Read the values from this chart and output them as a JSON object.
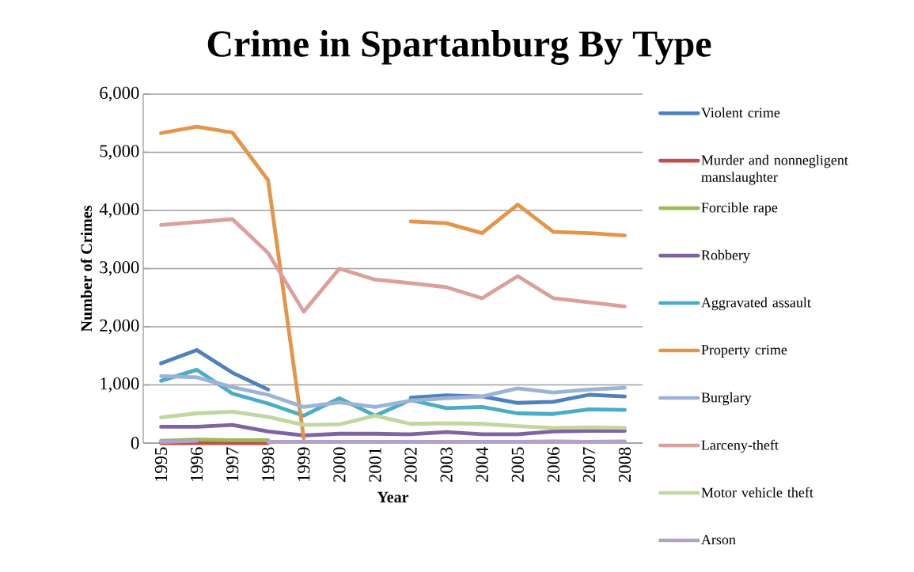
{
  "chart_data": {
    "type": "line",
    "title": "Crime in Spartanburg By Type",
    "xlabel": "Year",
    "ylabel": "Number of Crimes",
    "categories": [
      "1995",
      "1996",
      "1997",
      "1998",
      "1999",
      "2000",
      "2001",
      "2002",
      "2003",
      "2004",
      "2005",
      "2006",
      "2007",
      "2008"
    ],
    "ylim": [
      0,
      6000
    ],
    "yticks": [
      0,
      {
        "value": 1000,
        "label": "1,000"
      },
      {
        "value": 2000,
        "label": "2,000"
      },
      {
        "value": 3000,
        "label": "3,000"
      },
      {
        "value": 4000,
        "label": "4,000"
      },
      {
        "value": 5000,
        "label": "5,000"
      },
      {
        "value": 6000,
        "label": "6,000"
      }
    ],
    "grid": "y",
    "legend": "right",
    "marker": "none",
    "line_style": "solid",
    "series": [
      {
        "name": "Violent crime",
        "color": "#4f81bd",
        "values": [
          1370,
          1600,
          1210,
          920,
          null,
          null,
          null,
          780,
          820,
          800,
          690,
          710,
          830,
          800
        ]
      },
      {
        "name": "Murder and nonnegligent manslaughter",
        "color": "#c0504d",
        "values": [
          0,
          0,
          0,
          0,
          null,
          null,
          null,
          null,
          null,
          null,
          null,
          null,
          null,
          null
        ]
      },
      {
        "name": "Forcible rape",
        "color": "#9bbb59",
        "values": [
          40,
          60,
          50,
          50,
          null,
          null,
          null,
          null,
          null,
          null,
          null,
          null,
          null,
          null
        ]
      },
      {
        "name": "Robbery",
        "color": "#8064a2",
        "values": [
          280,
          280,
          310,
          200,
          130,
          160,
          160,
          150,
          190,
          150,
          150,
          200,
          210,
          210
        ]
      },
      {
        "name": "Aggravated assault",
        "color": "#4bacc6",
        "values": [
          1070,
          1260,
          850,
          680,
          470,
          770,
          470,
          740,
          600,
          620,
          510,
          500,
          580,
          570
        ]
      },
      {
        "name": "Property crime",
        "color": "#e3954a",
        "values": [
          5330,
          5440,
          5340,
          4520,
          80,
          null,
          null,
          3810,
          3780,
          3610,
          4100,
          3630,
          3610,
          3570
        ]
      },
      {
        "name": "Burglary",
        "color": "#9db3d6",
        "values": [
          1150,
          1130,
          960,
          830,
          620,
          700,
          620,
          730,
          770,
          800,
          940,
          870,
          920,
          950
        ]
      },
      {
        "name": "Larceny-theft",
        "color": "#d9a09c",
        "values": [
          3750,
          3800,
          3850,
          3270,
          2260,
          3000,
          2810,
          2750,
          2680,
          2490,
          2870,
          2490,
          2420,
          2350
        ]
      },
      {
        "name": "Motor vehicle theft",
        "color": "#c3d6a0",
        "values": [
          440,
          510,
          540,
          450,
          310,
          320,
          470,
          330,
          340,
          330,
          290,
          260,
          270,
          260
        ]
      },
      {
        "name": "Arson",
        "color": "#b2a2c7",
        "values": [
          20,
          40,
          null,
          20,
          20,
          20,
          20,
          20,
          20,
          20,
          20,
          30,
          20,
          30
        ]
      }
    ]
  }
}
